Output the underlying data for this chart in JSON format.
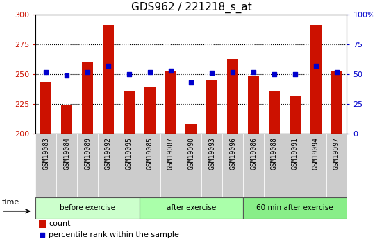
{
  "title": "GDS962 / 221218_s_at",
  "samples": [
    "GSM19083",
    "GSM19084",
    "GSM19089",
    "GSM19092",
    "GSM19095",
    "GSM19085",
    "GSM19087",
    "GSM19090",
    "GSM19093",
    "GSM19096",
    "GSM19086",
    "GSM19088",
    "GSM19091",
    "GSM19094",
    "GSM19097"
  ],
  "counts": [
    243,
    224,
    260,
    291,
    236,
    239,
    253,
    208,
    245,
    263,
    248,
    236,
    232,
    291,
    253
  ],
  "percentile_ranks": [
    52,
    49,
    52,
    57,
    50,
    52,
    53,
    43,
    51,
    52,
    52,
    50,
    50,
    57,
    52
  ],
  "groups": [
    {
      "label": "before exercise",
      "start": 0,
      "end": 5,
      "color": "#ccffcc"
    },
    {
      "label": "after exercise",
      "start": 5,
      "end": 10,
      "color": "#aaffaa"
    },
    {
      "label": "60 min after exercise",
      "start": 10,
      "end": 15,
      "color": "#88ee88"
    }
  ],
  "ylim_left": [
    200,
    300
  ],
  "ylim_right": [
    0,
    100
  ],
  "yticks_left": [
    200,
    225,
    250,
    275,
    300
  ],
  "yticks_right": [
    0,
    25,
    50,
    75,
    100
  ],
  "bar_color": "#cc1100",
  "dot_color": "#0000cc",
  "bar_bottom": 200,
  "grid_color": "#000000",
  "bg_color": "#ffffff",
  "title_fontsize": 11,
  "tick_label_fontsize": 7,
  "legend_items": [
    "count",
    "percentile rank within the sample"
  ],
  "group_separator_color": "#000000",
  "xtick_bg_color": "#cccccc"
}
